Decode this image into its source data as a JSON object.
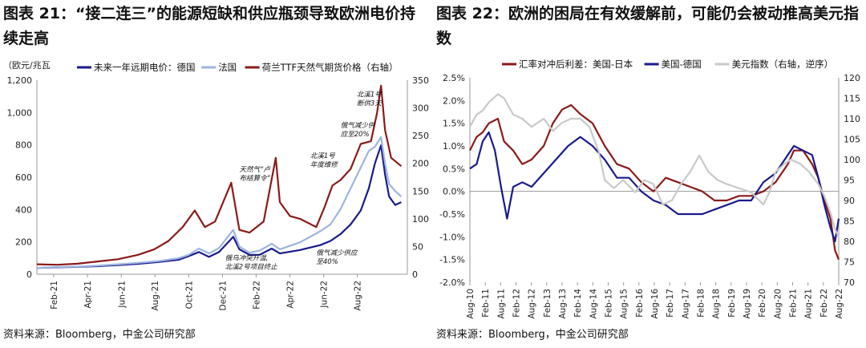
{
  "left_panel": {
    "title": "图表 21：“接二连三”的能源短缺和供应瓶颈导致欧洲电价持续走高",
    "source": "资料来源：Bloomberg，中金公司研究部",
    "annotations": [
      {
        "text": "北溪1号\n断供3天",
        "x": 2022.58,
        "y": 320
      },
      {
        "text": "俄气减少供\n应至20%",
        "x": 2022.5,
        "y": 265
      },
      {
        "text": "北溪1号\n年度维修",
        "x": 2022.35,
        "y": 210
      },
      {
        "text": "天然气“卢\n布结算令”",
        "x": 2022.0,
        "y": 185
      },
      {
        "text": "俄气减少供应\n至40%",
        "x": 2022.38,
        "y": 35
      },
      {
        "text": "俄乌冲突升温,\n北溪2号项目终止",
        "x": 2021.93,
        "y": 25
      }
    ]
  },
  "right_panel": {
    "title": "图表 22：欧洲的困局在有效缓解前，可能仍会被动推高美元指数",
    "source": "资料来源：Bloomberg，中金公司研究部"
  },
  "colors": {
    "dark_red": "#8b1a1a",
    "navy": "#1a1a8c",
    "light_blue": "#9db5e0",
    "gray": "#c9c9c9"
  },
  "chart_data": [
    {
      "type": "line",
      "xlabel": "",
      "ylabel_left": "（欧元/兆瓦",
      "ylabel_right": "",
      "x_range": [
        2021.0,
        2022.83
      ],
      "ylim_left": [
        0,
        1400
      ],
      "yticks_left": [
        "0",
        "200",
        "400",
        "600",
        "800",
        "1,000",
        "1,200"
      ],
      "ylim_right": [
        0,
        350
      ],
      "yticks_right": [
        "0",
        "50",
        "100",
        "150",
        "200",
        "250",
        "300",
        "350"
      ],
      "x_tick_labels": [
        "Feb-21",
        "Apr-21",
        "Jun-21",
        "Aug-21",
        "Oct-21",
        "Dec-21",
        "Feb-22",
        "Apr-22",
        "Jun-22",
        "Aug-22"
      ],
      "x_tick_values": [
        2021.083,
        2021.25,
        2021.417,
        2021.583,
        2021.75,
        2021.917,
        2022.083,
        2022.25,
        2022.417,
        2022.583
      ],
      "legend_placement": "top",
      "series": [
        {
          "name": "未来一年远期电价：德国",
          "color": "#1a1a8c",
          "axis": "left",
          "points": [
            [
              2021.0,
              45
            ],
            [
              2021.1,
              50
            ],
            [
              2021.2,
              53
            ],
            [
              2021.3,
              58
            ],
            [
              2021.4,
              66
            ],
            [
              2021.5,
              75
            ],
            [
              2021.6,
              88
            ],
            [
              2021.7,
              105
            ],
            [
              2021.75,
              130
            ],
            [
              2021.8,
              160
            ],
            [
              2021.85,
              125
            ],
            [
              2021.9,
              160
            ],
            [
              2021.97,
              270
            ],
            [
              2022.0,
              180
            ],
            [
              2022.05,
              140
            ],
            [
              2022.1,
              140
            ],
            [
              2022.16,
              185
            ],
            [
              2022.2,
              150
            ],
            [
              2022.3,
              175
            ],
            [
              2022.4,
              210
            ],
            [
              2022.45,
              240
            ],
            [
              2022.5,
              290
            ],
            [
              2022.55,
              360
            ],
            [
              2022.6,
              460
            ],
            [
              2022.64,
              620
            ],
            [
              2022.67,
              800
            ],
            [
              2022.7,
              930
            ],
            [
              2022.72,
              720
            ],
            [
              2022.74,
              560
            ],
            [
              2022.77,
              500
            ],
            [
              2022.8,
              520
            ]
          ]
        },
        {
          "name": "法国",
          "color": "#9db5e0",
          "axis": "left",
          "points": [
            [
              2021.0,
              45
            ],
            [
              2021.1,
              52
            ],
            [
              2021.2,
              55
            ],
            [
              2021.3,
              62
            ],
            [
              2021.4,
              72
            ],
            [
              2021.5,
              82
            ],
            [
              2021.6,
              95
            ],
            [
              2021.7,
              115
            ],
            [
              2021.75,
              140
            ],
            [
              2021.8,
              185
            ],
            [
              2021.85,
              150
            ],
            [
              2021.9,
              190
            ],
            [
              2021.97,
              320
            ],
            [
              2022.0,
              200
            ],
            [
              2022.05,
              155
            ],
            [
              2022.1,
              170
            ],
            [
              2022.16,
              220
            ],
            [
              2022.2,
              180
            ],
            [
              2022.3,
              230
            ],
            [
              2022.4,
              310
            ],
            [
              2022.45,
              360
            ],
            [
              2022.5,
              470
            ],
            [
              2022.55,
              620
            ],
            [
              2022.6,
              770
            ],
            [
              2022.64,
              890
            ],
            [
              2022.67,
              920
            ],
            [
              2022.7,
              990
            ],
            [
              2022.72,
              800
            ],
            [
              2022.74,
              650
            ],
            [
              2022.77,
              600
            ],
            [
              2022.8,
              560
            ]
          ]
        },
        {
          "name": "荷兰TTF天然气期货价格（右轴）",
          "color": "#8b1a1a",
          "axis": "right",
          "points": [
            [
              2021.0,
              18
            ],
            [
              2021.1,
              17
            ],
            [
              2021.2,
              19
            ],
            [
              2021.3,
              23
            ],
            [
              2021.4,
              27
            ],
            [
              2021.5,
              35
            ],
            [
              2021.58,
              45
            ],
            [
              2021.65,
              60
            ],
            [
              2021.72,
              85
            ],
            [
              2021.78,
              115
            ],
            [
              2021.83,
              85
            ],
            [
              2021.88,
              95
            ],
            [
              2021.96,
              165
            ],
            [
              2022.0,
              80
            ],
            [
              2022.05,
              75
            ],
            [
              2022.12,
              95
            ],
            [
              2022.18,
              210
            ],
            [
              2022.2,
              130
            ],
            [
              2022.25,
              105
            ],
            [
              2022.3,
              100
            ],
            [
              2022.38,
              85
            ],
            [
              2022.42,
              120
            ],
            [
              2022.46,
              160
            ],
            [
              2022.5,
              170
            ],
            [
              2022.55,
              190
            ],
            [
              2022.6,
              235
            ],
            [
              2022.65,
              240
            ],
            [
              2022.68,
              290
            ],
            [
              2022.7,
              340
            ],
            [
              2022.72,
              260
            ],
            [
              2022.75,
              210
            ],
            [
              2022.8,
              195
            ]
          ]
        }
      ]
    },
    {
      "type": "line",
      "xlabel": "",
      "ylabel_left": "",
      "ylabel_right": "",
      "x_range": [
        2010.58,
        2022.67
      ],
      "ylim_left": [
        -2.0,
        2.5
      ],
      "yticks_left": [
        "-2.0%",
        "-1.5%",
        "-1.0%",
        "-0.5%",
        "0.0%",
        "0.5%",
        "1.0%",
        "1.5%",
        "2.0%",
        "2.5%"
      ],
      "ylim_right": [
        120,
        70
      ],
      "yticks_right": [
        "70",
        "75",
        "80",
        "85",
        "90",
        "95",
        "100",
        "105",
        "110",
        "115",
        "120"
      ],
      "right_axis_inverted": true,
      "x_tick_labels": [
        "Aug-10",
        "Feb-11",
        "Aug-11",
        "Feb-12",
        "Aug-12",
        "Feb-13",
        "Aug-13",
        "Feb-14",
        "Aug-14",
        "Feb-15",
        "Aug-15",
        "Feb-16",
        "Aug-16",
        "Feb-17",
        "Aug-17",
        "Feb-18",
        "Aug-18",
        "Feb-19",
        "Aug-19",
        "Feb-20",
        "Aug-20",
        "Feb-21",
        "Aug-21",
        "Feb-22",
        "Aug-22"
      ],
      "legend_placement": "top",
      "series": [
        {
          "name": "汇率对冲后利差：美国-日本",
          "color": "#8b1a1a",
          "axis": "left",
          "points": [
            [
              2010.58,
              0.9
            ],
            [
              2010.8,
              1.2
            ],
            [
              2011.0,
              1.3
            ],
            [
              2011.2,
              1.5
            ],
            [
              2011.5,
              1.6
            ],
            [
              2011.7,
              1.1
            ],
            [
              2012.0,
              0.9
            ],
            [
              2012.3,
              0.6
            ],
            [
              2012.6,
              0.7
            ],
            [
              2013.0,
              1.0
            ],
            [
              2013.3,
              1.5
            ],
            [
              2013.6,
              1.8
            ],
            [
              2013.9,
              1.9
            ],
            [
              2014.2,
              1.7
            ],
            [
              2014.6,
              1.5
            ],
            [
              2015.0,
              1.0
            ],
            [
              2015.4,
              0.6
            ],
            [
              2015.8,
              0.5
            ],
            [
              2016.2,
              0.2
            ],
            [
              2016.6,
              0.0
            ],
            [
              2017.0,
              0.3
            ],
            [
              2017.4,
              0.2
            ],
            [
              2017.8,
              0.1
            ],
            [
              2018.2,
              0.0
            ],
            [
              2018.6,
              -0.2
            ],
            [
              2019.0,
              -0.2
            ],
            [
              2019.4,
              -0.1
            ],
            [
              2019.8,
              -0.1
            ],
            [
              2020.2,
              0.0
            ],
            [
              2020.6,
              0.2
            ],
            [
              2021.0,
              0.6
            ],
            [
              2021.2,
              0.9
            ],
            [
              2021.5,
              0.9
            ],
            [
              2021.8,
              0.6
            ],
            [
              2022.0,
              0.3
            ],
            [
              2022.2,
              -0.2
            ],
            [
              2022.4,
              -0.6
            ],
            [
              2022.55,
              -1.3
            ],
            [
              2022.67,
              -1.5
            ]
          ]
        },
        {
          "name": "美国-德国",
          "color": "#1a1a8c",
          "axis": "left",
          "points": [
            [
              2010.58,
              0.5
            ],
            [
              2010.8,
              0.6
            ],
            [
              2011.0,
              1.1
            ],
            [
              2011.2,
              1.3
            ],
            [
              2011.4,
              0.9
            ],
            [
              2011.6,
              0.1
            ],
            [
              2011.8,
              -0.6
            ],
            [
              2012.0,
              0.1
            ],
            [
              2012.3,
              0.2
            ],
            [
              2012.6,
              0.1
            ],
            [
              2013.0,
              0.4
            ],
            [
              2013.4,
              0.7
            ],
            [
              2013.8,
              1.0
            ],
            [
              2014.2,
              1.2
            ],
            [
              2014.6,
              1.0
            ],
            [
              2015.0,
              0.7
            ],
            [
              2015.4,
              0.3
            ],
            [
              2015.8,
              0.3
            ],
            [
              2016.2,
              0.0
            ],
            [
              2016.6,
              -0.2
            ],
            [
              2017.0,
              -0.3
            ],
            [
              2017.4,
              -0.5
            ],
            [
              2017.8,
              -0.5
            ],
            [
              2018.2,
              -0.5
            ],
            [
              2018.6,
              -0.4
            ],
            [
              2019.0,
              -0.3
            ],
            [
              2019.4,
              -0.2
            ],
            [
              2019.8,
              -0.2
            ],
            [
              2020.2,
              0.2
            ],
            [
              2020.6,
              0.4
            ],
            [
              2021.0,
              0.8
            ],
            [
              2021.2,
              1.0
            ],
            [
              2021.5,
              0.9
            ],
            [
              2021.8,
              0.8
            ],
            [
              2022.0,
              0.3
            ],
            [
              2022.2,
              -0.3
            ],
            [
              2022.4,
              -0.8
            ],
            [
              2022.55,
              -1.1
            ],
            [
              2022.67,
              -0.6
            ]
          ]
        },
        {
          "name": "美元指数（右轴，逆序）",
          "color": "#c9c9c9",
          "axis": "right",
          "points": [
            [
              2010.58,
              82
            ],
            [
              2010.8,
              79
            ],
            [
              2011.0,
              78
            ],
            [
              2011.2,
              76
            ],
            [
              2011.5,
              74
            ],
            [
              2011.7,
              75
            ],
            [
              2012.0,
              79
            ],
            [
              2012.3,
              80
            ],
            [
              2012.6,
              82
            ],
            [
              2013.0,
              80
            ],
            [
              2013.3,
              83
            ],
            [
              2013.6,
              81
            ],
            [
              2013.9,
              80
            ],
            [
              2014.2,
              80
            ],
            [
              2014.5,
              82
            ],
            [
              2014.8,
              88
            ],
            [
              2015.0,
              95
            ],
            [
              2015.3,
              97
            ],
            [
              2015.6,
              95
            ],
            [
              2016.0,
              98
            ],
            [
              2016.3,
              95
            ],
            [
              2016.6,
              96
            ],
            [
              2016.9,
              101
            ],
            [
              2017.2,
              100
            ],
            [
              2017.5,
              96
            ],
            [
              2017.8,
              93
            ],
            [
              2018.1,
              89
            ],
            [
              2018.4,
              93
            ],
            [
              2018.7,
              95
            ],
            [
              2019.0,
              96
            ],
            [
              2019.4,
              97
            ],
            [
              2019.8,
              98
            ],
            [
              2020.2,
              101
            ],
            [
              2020.4,
              98
            ],
            [
              2020.6,
              93
            ],
            [
              2020.9,
              91
            ],
            [
              2021.1,
              90
            ],
            [
              2021.4,
              91
            ],
            [
              2021.7,
              93
            ],
            [
              2022.0,
              96
            ],
            [
              2022.2,
              99
            ],
            [
              2022.4,
              103
            ],
            [
              2022.55,
              107
            ],
            [
              2022.67,
              109
            ]
          ]
        }
      ]
    }
  ]
}
